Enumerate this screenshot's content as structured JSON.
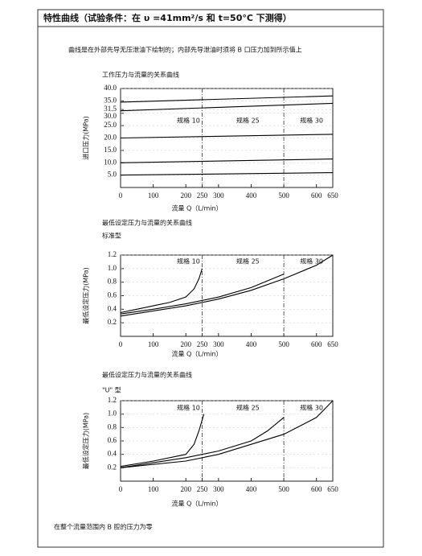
{
  "header": {
    "title": "特性曲线（试验条件：在 υ =41mm²/s 和 t=50°C 下测得）"
  },
  "note": "曲线是在外部先导无压泄油下绘制的；内部先导泄油时须将 B 口压力加到所示值上",
  "footer": "在整个流量范围内 B 腔的压力为零",
  "chart_data": [
    {
      "type": "line",
      "title": "工作压力与流量的关系曲线",
      "xlabel": "流量 Q（L/min）",
      "ylabel": "进口压力(MPa)",
      "xlim": [
        0,
        650
      ],
      "xticks": [
        0,
        100,
        200,
        250,
        300,
        400,
        500,
        600,
        650
      ],
      "ylim": [
        0,
        40
      ],
      "yticks": [
        {
          "value": 40,
          "label": "40.0"
        },
        {
          "value": 35,
          "label": "35.0"
        },
        31.5,
        {
          "value": 30,
          "label": "30.0"
        },
        {
          "value": 25,
          "label": "25.0"
        },
        {
          "value": 20,
          "label": "20.0"
        },
        {
          "value": 15,
          "label": "15.0"
        },
        {
          "value": 10,
          "label": "10.0"
        },
        {
          "value": 5,
          "label": "5.0"
        }
      ],
      "vlines": [
        250,
        500
      ],
      "annotations": [
        "规格 10",
        "规格 25",
        "规格 30"
      ],
      "series": [
        {
          "color": "#000000",
          "x": [
            0,
            650
          ],
          "values": [
            34.5,
            37
          ]
        },
        {
          "color": "#000000",
          "x": [
            0,
            650
          ],
          "values": [
            31,
            34
          ]
        },
        {
          "color": "#000000",
          "x": [
            0,
            650
          ],
          "values": [
            20,
            21.5
          ]
        },
        {
          "color": "#000000",
          "x": [
            0,
            650
          ],
          "values": [
            10,
            11.5
          ]
        },
        {
          "color": "#000000",
          "x": [
            0,
            650
          ],
          "values": [
            5,
            6
          ]
        }
      ]
    },
    {
      "type": "line",
      "title": "最低设定压力与流量的关系曲线",
      "subtitle": "标准型",
      "xlabel": "流量 Q（L/min）",
      "ylabel": "最低设定压力(MPa)",
      "xlim": [
        0,
        650
      ],
      "xticks": [
        0,
        100,
        200,
        250,
        300,
        400,
        500,
        600,
        650
      ],
      "ylim": [
        0,
        1.2
      ],
      "yticks": [
        1.2,
        {
          "value": 1,
          "label": "1.0"
        },
        0.8,
        0.6,
        0.4,
        0.2
      ],
      "vlines": [
        250,
        500
      ],
      "annotations": [
        "规格 10",
        "规格 25",
        "规格 30"
      ],
      "series": [
        {
          "color": "#000000",
          "x": [
            0,
            50,
            100,
            150,
            200,
            225,
            240,
            250
          ],
          "values": [
            0.35,
            0.4,
            0.45,
            0.5,
            0.58,
            0.7,
            0.85,
            1.0
          ]
        },
        {
          "color": "#000000",
          "x": [
            0,
            100,
            200,
            300,
            400,
            500
          ],
          "values": [
            0.33,
            0.4,
            0.48,
            0.58,
            0.72,
            0.92
          ]
        },
        {
          "color": "#000000",
          "x": [
            0,
            200,
            300,
            400,
            500,
            600,
            650
          ],
          "values": [
            0.3,
            0.45,
            0.55,
            0.68,
            0.85,
            1.05,
            1.2
          ]
        }
      ]
    },
    {
      "type": "line",
      "title": "最低设定压力与流量的关系曲线",
      "subtitle": "\"U\" 型",
      "xlabel": "流量 Q（L/min）",
      "ylabel": "最低设定压力(MPa)",
      "xlim": [
        0,
        650
      ],
      "xticks": [
        0,
        100,
        200,
        250,
        300,
        400,
        500,
        600,
        650
      ],
      "ylim": [
        0,
        1.2
      ],
      "yticks": [
        1.2,
        {
          "value": 1,
          "label": "1.0"
        },
        0.8,
        0.6,
        0.4,
        0.2
      ],
      "vlines": [
        250,
        500
      ],
      "annotations": [
        "规格 10",
        "规格 25",
        "规格 30"
      ],
      "series": [
        {
          "color": "#000000",
          "x": [
            0,
            100,
            200,
            225,
            240,
            255
          ],
          "values": [
            0.22,
            0.3,
            0.4,
            0.55,
            0.75,
            1.0
          ]
        },
        {
          "color": "#000000",
          "x": [
            0,
            200,
            300,
            400,
            450,
            500
          ],
          "values": [
            0.2,
            0.35,
            0.45,
            0.6,
            0.75,
            0.95
          ]
        },
        {
          "color": "#000000",
          "x": [
            0,
            200,
            300,
            400,
            500,
            600,
            650
          ],
          "values": [
            0.2,
            0.3,
            0.4,
            0.55,
            0.7,
            0.95,
            1.2
          ]
        }
      ]
    }
  ]
}
